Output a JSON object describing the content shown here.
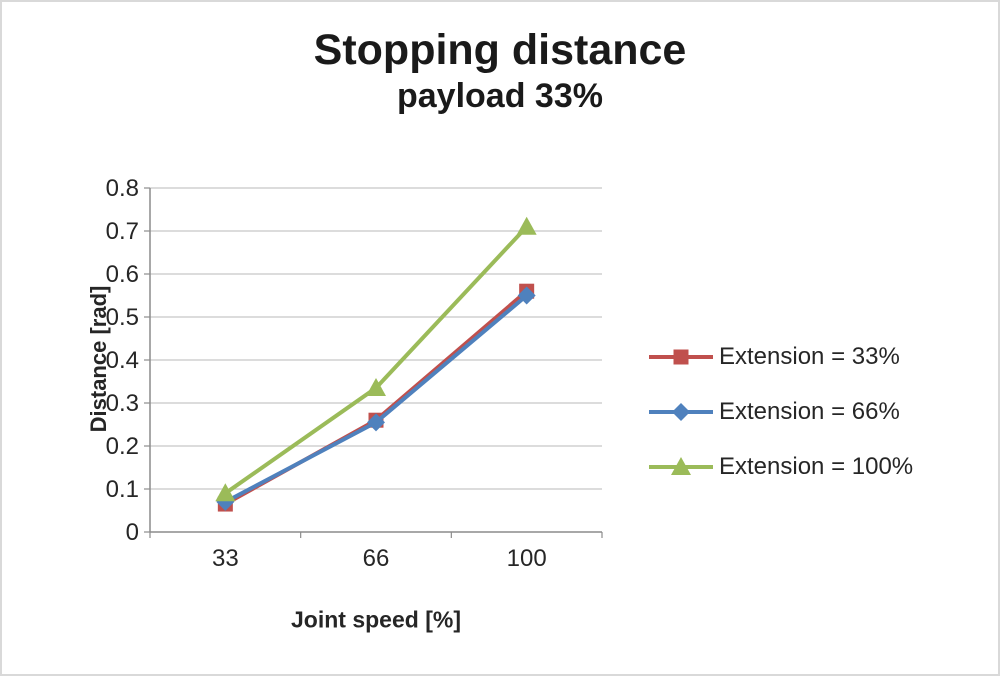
{
  "chart_data": {
    "type": "line",
    "title": "Stopping distance",
    "subtitle": "payload 33%",
    "xlabel": "Joint speed [%]",
    "ylabel": "Distance [rad]",
    "categories": [
      "33",
      "66",
      "100"
    ],
    "ylim": [
      0,
      0.8
    ],
    "yticks": [
      "0",
      "0.1",
      "0.2",
      "0.3",
      "0.4",
      "0.5",
      "0.6",
      "0.7",
      "0.8"
    ],
    "grid": true,
    "legend_position": "right",
    "series": [
      {
        "name": "Extension = 33%",
        "marker": "square",
        "color": "#C0504D",
        "values": [
          0.065,
          0.26,
          0.56
        ]
      },
      {
        "name": "Extension = 66%",
        "marker": "diamond",
        "color": "#4F81BD",
        "values": [
          0.07,
          0.255,
          0.55
        ]
      },
      {
        "name": "Extension = 100%",
        "marker": "triangle",
        "color": "#9BBB59",
        "values": [
          0.09,
          0.335,
          0.71
        ]
      }
    ],
    "colors": {
      "gridline": "#c6c6c6",
      "axis": "#8c8c8c",
      "text": "#262626"
    }
  }
}
